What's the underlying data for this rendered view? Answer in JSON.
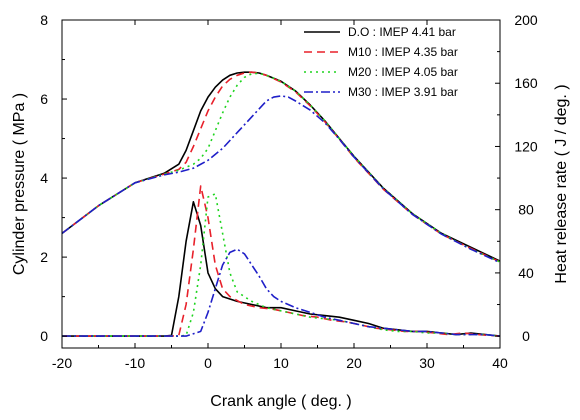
{
  "chart_data": {
    "type": "line",
    "xlabel": "Crank angle ( deg. )",
    "ylabel_left": "Cylinder pressure ( MPa )",
    "ylabel_right": "Heat release rate ( J / deg. )",
    "xlim": [
      -20,
      40
    ],
    "ylim_left": [
      -0.3,
      8
    ],
    "ylim_right": [
      -7.5,
      200
    ],
    "x_ticks": [
      -20,
      -10,
      0,
      10,
      20,
      30,
      40
    ],
    "y_left_ticks": [
      0,
      2,
      4,
      6,
      8
    ],
    "y_right_ticks": [
      0,
      40,
      80,
      120,
      160,
      200
    ],
    "grid": false,
    "legend_position": "top-right",
    "series": [
      {
        "name": "D.O : IMEP 4.41 bar",
        "color": "#000000",
        "dash": "solid",
        "pressure": [
          [
            -20,
            2.6
          ],
          [
            -15,
            3.3
          ],
          [
            -10,
            3.88
          ],
          [
            -6,
            4.12
          ],
          [
            -4,
            4.35
          ],
          [
            -3,
            4.7
          ],
          [
            -2,
            5.2
          ],
          [
            -1,
            5.7
          ],
          [
            0,
            6.05
          ],
          [
            1,
            6.3
          ],
          [
            2,
            6.48
          ],
          [
            3,
            6.6
          ],
          [
            4,
            6.66
          ],
          [
            5,
            6.68
          ],
          [
            6,
            6.68
          ],
          [
            7,
            6.66
          ],
          [
            8,
            6.6
          ],
          [
            10,
            6.45
          ],
          [
            12,
            6.2
          ],
          [
            14,
            5.85
          ],
          [
            16,
            5.45
          ],
          [
            18,
            5.0
          ],
          [
            20,
            4.55
          ],
          [
            24,
            3.75
          ],
          [
            28,
            3.1
          ],
          [
            32,
            2.6
          ],
          [
            36,
            2.25
          ],
          [
            40,
            1.9
          ]
        ],
        "hrr": [
          [
            -20,
            0
          ],
          [
            -6,
            0
          ],
          [
            -5,
            0.5
          ],
          [
            -4,
            25
          ],
          [
            -3,
            60
          ],
          [
            -2,
            85
          ],
          [
            -1,
            70
          ],
          [
            0,
            40
          ],
          [
            1,
            30
          ],
          [
            2,
            25
          ],
          [
            4,
            22
          ],
          [
            6,
            20
          ],
          [
            8,
            18
          ],
          [
            10,
            18
          ],
          [
            12,
            16
          ],
          [
            14,
            14
          ],
          [
            16,
            13
          ],
          [
            18,
            12
          ],
          [
            20,
            10
          ],
          [
            22,
            8
          ],
          [
            24,
            5
          ],
          [
            26,
            4
          ],
          [
            28,
            3
          ],
          [
            30,
            3
          ],
          [
            32,
            2
          ],
          [
            34,
            1
          ],
          [
            36,
            2
          ],
          [
            38,
            1
          ],
          [
            40,
            0
          ]
        ]
      },
      {
        "name": "M10 : IMEP 4.35 bar",
        "color": "#e8202a",
        "dash": "8,5",
        "pressure": [
          [
            -20,
            2.6
          ],
          [
            -15,
            3.3
          ],
          [
            -10,
            3.88
          ],
          [
            -6,
            4.1
          ],
          [
            -4,
            4.22
          ],
          [
            -3,
            4.4
          ],
          [
            -2,
            4.8
          ],
          [
            -1,
            5.25
          ],
          [
            0,
            5.7
          ],
          [
            1,
            6.05
          ],
          [
            2,
            6.33
          ],
          [
            3,
            6.5
          ],
          [
            4,
            6.6
          ],
          [
            5,
            6.66
          ],
          [
            6,
            6.68
          ],
          [
            7,
            6.66
          ],
          [
            8,
            6.6
          ],
          [
            10,
            6.43
          ],
          [
            12,
            6.18
          ],
          [
            14,
            5.83
          ],
          [
            16,
            5.43
          ],
          [
            18,
            4.98
          ],
          [
            20,
            4.52
          ],
          [
            24,
            3.72
          ],
          [
            28,
            3.08
          ],
          [
            32,
            2.58
          ],
          [
            36,
            2.22
          ],
          [
            40,
            1.88
          ]
        ],
        "hrr": [
          [
            -20,
            0
          ],
          [
            -5,
            0
          ],
          [
            -4,
            0.5
          ],
          [
            -3,
            20
          ],
          [
            -2,
            55
          ],
          [
            -1,
            95
          ],
          [
            0,
            75
          ],
          [
            1,
            45
          ],
          [
            2,
            30
          ],
          [
            3,
            25
          ],
          [
            5,
            20
          ],
          [
            7,
            18
          ],
          [
            9,
            17
          ],
          [
            11,
            15
          ],
          [
            13,
            13
          ],
          [
            15,
            12
          ],
          [
            17,
            10
          ],
          [
            19,
            9
          ],
          [
            21,
            7
          ],
          [
            23,
            5
          ],
          [
            25,
            4
          ],
          [
            27,
            3
          ],
          [
            29,
            3
          ],
          [
            31,
            2
          ],
          [
            33,
            1
          ],
          [
            35,
            2
          ],
          [
            37,
            1
          ],
          [
            40,
            0
          ]
        ]
      },
      {
        "name": "M20 : IMEP 4.05 bar",
        "color": "#1ed41e",
        "dash": "2,4",
        "pressure": [
          [
            -20,
            2.6
          ],
          [
            -15,
            3.3
          ],
          [
            -10,
            3.88
          ],
          [
            -6,
            4.1
          ],
          [
            -4,
            4.2
          ],
          [
            -2,
            4.35
          ],
          [
            -1,
            4.5
          ],
          [
            0,
            4.75
          ],
          [
            1,
            5.2
          ],
          [
            2,
            5.65
          ],
          [
            3,
            6.05
          ],
          [
            4,
            6.35
          ],
          [
            5,
            6.55
          ],
          [
            6,
            6.64
          ],
          [
            7,
            6.65
          ],
          [
            8,
            6.6
          ],
          [
            10,
            6.45
          ],
          [
            12,
            6.2
          ],
          [
            14,
            5.85
          ],
          [
            16,
            5.45
          ],
          [
            18,
            5.0
          ],
          [
            20,
            4.55
          ],
          [
            24,
            3.75
          ],
          [
            28,
            3.1
          ],
          [
            32,
            2.6
          ],
          [
            36,
            2.2
          ],
          [
            40,
            1.88
          ]
        ],
        "hrr": [
          [
            -20,
            0
          ],
          [
            -4,
            0
          ],
          [
            -3,
            0.5
          ],
          [
            -2,
            15
          ],
          [
            -1,
            45
          ],
          [
            0,
            88
          ],
          [
            1,
            90
          ],
          [
            2,
            65
          ],
          [
            3,
            40
          ],
          [
            4,
            28
          ],
          [
            6,
            22
          ],
          [
            8,
            18
          ],
          [
            10,
            16
          ],
          [
            12,
            14
          ],
          [
            14,
            12
          ],
          [
            16,
            11
          ],
          [
            18,
            10
          ],
          [
            20,
            8
          ],
          [
            22,
            6
          ],
          [
            24,
            4
          ],
          [
            26,
            3
          ],
          [
            28,
            3
          ],
          [
            30,
            2
          ],
          [
            32,
            2
          ],
          [
            34,
            1
          ],
          [
            36,
            1
          ],
          [
            38,
            1
          ],
          [
            40,
            0
          ]
        ]
      },
      {
        "name": "M30 : IMEP 3.91 bar",
        "color": "#1f1fc8",
        "dash": "9,3,2,3",
        "pressure": [
          [
            -20,
            2.6
          ],
          [
            -15,
            3.3
          ],
          [
            -10,
            3.88
          ],
          [
            -6,
            4.08
          ],
          [
            -4,
            4.15
          ],
          [
            -2,
            4.25
          ],
          [
            0,
            4.45
          ],
          [
            2,
            4.75
          ],
          [
            4,
            5.15
          ],
          [
            6,
            5.55
          ],
          [
            8,
            5.95
          ],
          [
            9,
            6.05
          ],
          [
            10,
            6.08
          ],
          [
            11,
            6.05
          ],
          [
            12,
            5.95
          ],
          [
            14,
            5.72
          ],
          [
            16,
            5.4
          ],
          [
            18,
            4.98
          ],
          [
            20,
            4.53
          ],
          [
            24,
            3.73
          ],
          [
            28,
            3.08
          ],
          [
            32,
            2.58
          ],
          [
            36,
            2.2
          ],
          [
            40,
            1.86
          ]
        ],
        "hrr": [
          [
            -20,
            0
          ],
          [
            -3,
            0
          ],
          [
            -1,
            3
          ],
          [
            0,
            15
          ],
          [
            1,
            30
          ],
          [
            2,
            45
          ],
          [
            3,
            53
          ],
          [
            4,
            55
          ],
          [
            5,
            52
          ],
          [
            6,
            45
          ],
          [
            7,
            38
          ],
          [
            8,
            30
          ],
          [
            9,
            25
          ],
          [
            10,
            22
          ],
          [
            12,
            18
          ],
          [
            14,
            15
          ],
          [
            16,
            12
          ],
          [
            18,
            10
          ],
          [
            20,
            8
          ],
          [
            22,
            6
          ],
          [
            24,
            5
          ],
          [
            26,
            4
          ],
          [
            28,
            3
          ],
          [
            30,
            3
          ],
          [
            32,
            2
          ],
          [
            34,
            1
          ],
          [
            36,
            1
          ],
          [
            38,
            1
          ],
          [
            40,
            0
          ]
        ]
      }
    ]
  }
}
